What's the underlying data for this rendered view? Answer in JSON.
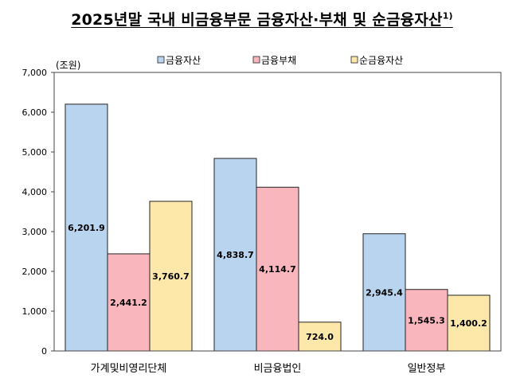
{
  "chart_data": {
    "type": "bar",
    "title": "2025년말 국내 비금융부문 금융자산·부채 및 순금융자산",
    "title_note": "1)",
    "unit_label": "(조원)",
    "categories": [
      "가계및비영리단체",
      "비금융법인",
      "일반정부"
    ],
    "series": [
      {
        "name": "금융자산",
        "values": [
          6201.9,
          4838.7,
          2945.4
        ],
        "labels": [
          "6,201.9",
          "4,838.7",
          "2,945.4"
        ],
        "color": "#b9d4ee"
      },
      {
        "name": "금융부채",
        "values": [
          2441.2,
          4114.7,
          1545.3
        ],
        "labels": [
          "2,441.2",
          "4,114.7",
          "1,545.3"
        ],
        "color": "#f9b7bd"
      },
      {
        "name": "순금융자산",
        "values": [
          3760.7,
          724.0,
          1400.2
        ],
        "labels": [
          "3,760.7",
          "724.0",
          "1,400.2"
        ],
        "color": "#fde8aa"
      }
    ],
    "ylim": [
      0,
      7000
    ],
    "yticks": [
      0,
      1000,
      2000,
      3000,
      4000,
      5000,
      6000,
      7000
    ],
    "ytick_labels": [
      "0",
      "1,000",
      "2,000",
      "3,000",
      "4,000",
      "5,000",
      "6,000",
      "7,000"
    ],
    "legend": "top-center",
    "grid": false
  }
}
